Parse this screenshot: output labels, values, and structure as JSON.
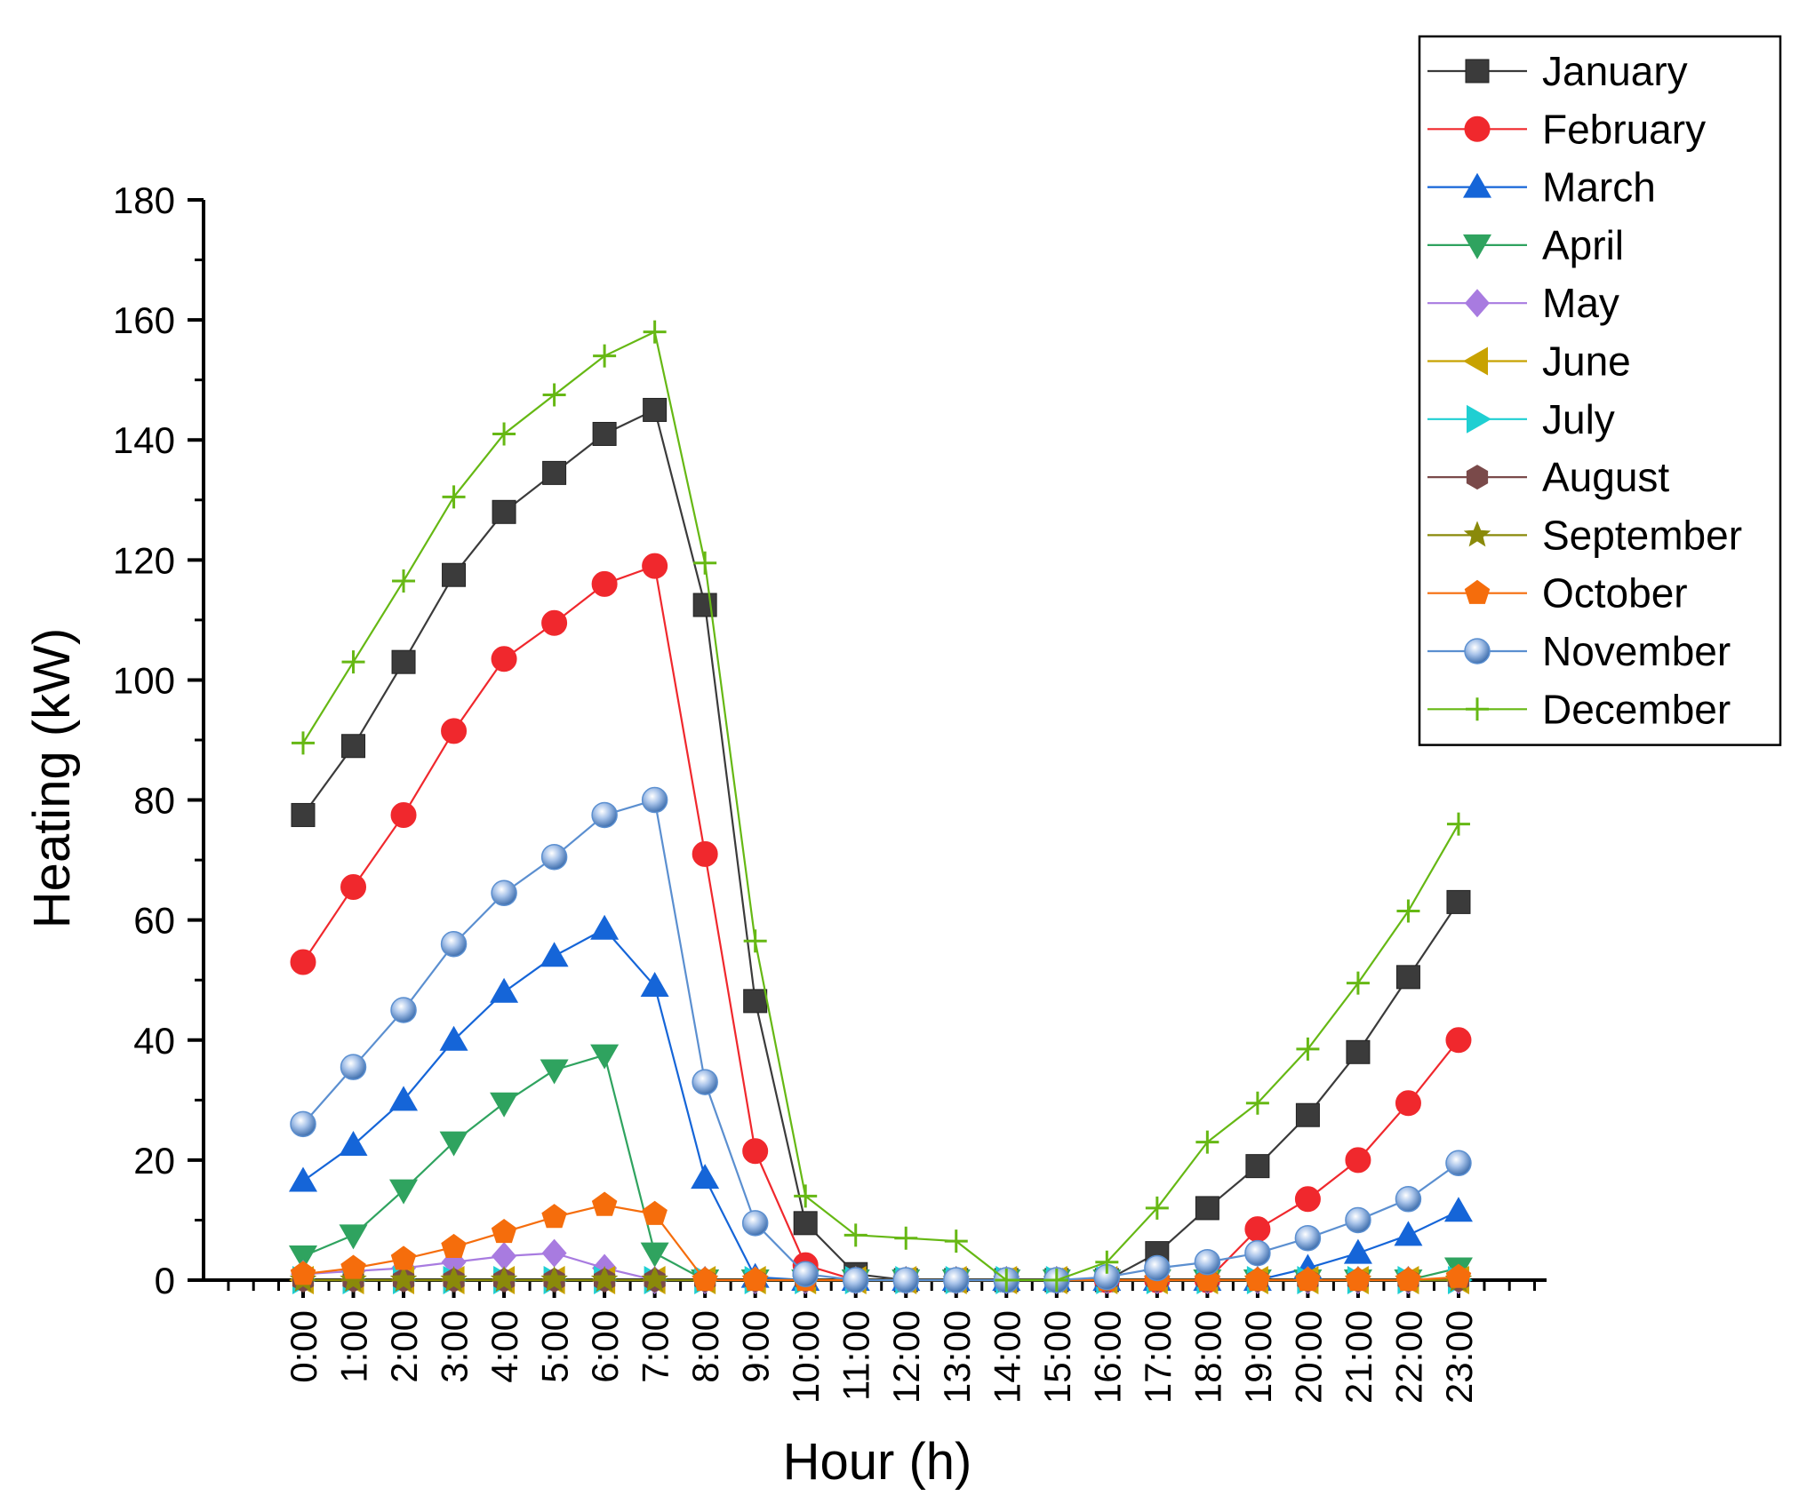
{
  "chart_data": {
    "type": "line",
    "title": "",
    "xlabel": "Hour (h)",
    "ylabel": "Heating (kW)",
    "categories": [
      "0:00",
      "1:00",
      "2:00",
      "3:00",
      "4:00",
      "5:00",
      "6:00",
      "7:00",
      "8:00",
      "9:00",
      "10:00",
      "11:00",
      "12:00",
      "13:00",
      "14:00",
      "15:00",
      "16:00",
      "17:00",
      "18:00",
      "19:00",
      "20:00",
      "21:00",
      "22:00",
      "23:00"
    ],
    "ylim": [
      0,
      180
    ],
    "yticks": [
      "0",
      "20",
      "40",
      "60",
      "80",
      "100",
      "120",
      "140",
      "160",
      "180"
    ],
    "legend_position": "top-right",
    "series": [
      {
        "name": "January",
        "color": "#3b3b3b",
        "marker": "square",
        "values": [
          77.5,
          89,
          103,
          117.5,
          128,
          134.5,
          141,
          145,
          112.5,
          46.5,
          9.5,
          1,
          0,
          0,
          0,
          0,
          0,
          4.5,
          12,
          19,
          27.5,
          38,
          50.5,
          63
        ]
      },
      {
        "name": "February",
        "color": "#f0282d",
        "marker": "circle",
        "values": [
          53,
          65.5,
          77.5,
          91.5,
          103.5,
          109.5,
          116,
          119,
          71,
          21.5,
          2.5,
          0,
          0,
          0,
          0,
          0,
          0,
          0,
          0,
          8.5,
          13.5,
          20,
          29.5,
          40
        ]
      },
      {
        "name": "March",
        "color": "#1565d8",
        "marker": "triangle-up",
        "values": [
          16.5,
          22.5,
          30,
          40,
          48,
          54,
          58.5,
          49,
          17,
          0.5,
          0,
          0,
          0,
          0,
          0,
          0,
          0,
          0,
          0,
          0,
          2,
          4.5,
          7.5,
          11.5
        ]
      },
      {
        "name": "April",
        "color": "#2fa35f",
        "marker": "triangle-down",
        "values": [
          4,
          7.5,
          15,
          23,
          29.5,
          35,
          37.5,
          4.5,
          0,
          0,
          0,
          0,
          0,
          0,
          0,
          0,
          0,
          0,
          0,
          0,
          0,
          0,
          0,
          2
        ]
      },
      {
        "name": "May",
        "color": "#a87be0",
        "marker": "diamond",
        "values": [
          1,
          1.5,
          2,
          3,
          4,
          4.5,
          2,
          0,
          0,
          0,
          0,
          0,
          0,
          0,
          0,
          0,
          0,
          0,
          0,
          0,
          0,
          0,
          0,
          0
        ]
      },
      {
        "name": "June",
        "color": "#c8a200",
        "marker": "triangle-left",
        "values": [
          0,
          0,
          0,
          0,
          0,
          0,
          0,
          0,
          0,
          0,
          0,
          0,
          0,
          0,
          0,
          0,
          0,
          0,
          0,
          0,
          0,
          0,
          0,
          0
        ]
      },
      {
        "name": "July",
        "color": "#1fcfd2",
        "marker": "triangle-right",
        "values": [
          0,
          0,
          0,
          0,
          0,
          0,
          0,
          0,
          0,
          0,
          0,
          0,
          0,
          0,
          0,
          0,
          0,
          0,
          0,
          0,
          0,
          0,
          0,
          0
        ]
      },
      {
        "name": "August",
        "color": "#7a4a4a",
        "marker": "hexagon",
        "values": [
          0,
          0,
          0,
          0,
          0,
          0,
          0,
          0,
          0,
          0,
          0,
          0,
          0,
          0,
          0,
          0,
          0,
          0,
          0,
          0,
          0,
          0,
          0,
          0
        ]
      },
      {
        "name": "September",
        "color": "#8a8a0a",
        "marker": "star",
        "values": [
          0,
          0,
          0,
          0,
          0,
          0,
          0,
          0,
          0,
          0,
          0,
          0,
          0,
          0,
          0,
          0,
          0,
          0,
          0,
          0,
          0,
          0,
          0,
          0
        ]
      },
      {
        "name": "October",
        "color": "#f56d0c",
        "marker": "pentagon",
        "values": [
          1,
          2,
          3.5,
          5.5,
          8,
          10.5,
          12.5,
          11,
          0,
          0,
          0,
          0,
          0,
          0,
          0,
          0,
          0,
          0,
          0,
          0,
          0,
          0,
          0,
          0.5
        ]
      },
      {
        "name": "November",
        "color": "#5b8fd0",
        "marker": "sphere",
        "values": [
          26,
          35.5,
          45,
          56,
          64.5,
          70.5,
          77.5,
          80,
          33,
          9.5,
          1,
          0,
          0,
          0,
          0,
          0,
          0.5,
          2,
          3,
          4.5,
          7,
          10,
          13.5,
          19.5
        ]
      },
      {
        "name": "December",
        "color": "#66b814",
        "marker": "plus",
        "values": [
          89.5,
          103,
          116.5,
          130.5,
          141,
          147.5,
          154,
          158,
          119.5,
          56.5,
          14,
          7.5,
          7,
          6.5,
          0,
          0,
          3,
          12,
          23,
          29.5,
          38.5,
          49.5,
          61.5,
          76
        ]
      }
    ]
  }
}
